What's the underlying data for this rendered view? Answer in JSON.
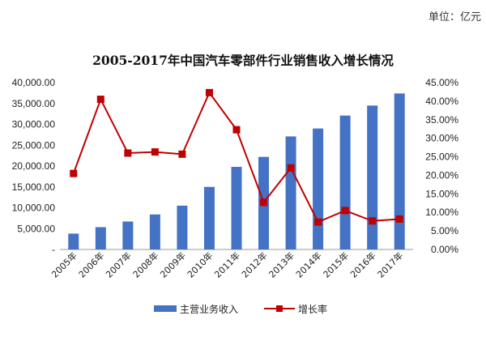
{
  "unit_label": "单位：亿元",
  "chart_data": {
    "type": "bar",
    "title": "2005-2017年中国汽车零部件行业销售收入增长情况",
    "categories": [
      "2005年",
      "2006年",
      "2007年",
      "2008年",
      "2009年",
      "2010年",
      "2011年",
      "2012年",
      "2013年",
      "2014年",
      "2015年",
      "2016年",
      "2017年"
    ],
    "series": [
      {
        "name": "主营业务收入",
        "type": "bar",
        "axis": "left",
        "color": "#4472C4",
        "values": [
          3800,
          5350,
          6700,
          8400,
          10500,
          15000,
          19800,
          22200,
          27100,
          29000,
          32100,
          34500,
          37400
        ]
      },
      {
        "name": "增长率",
        "type": "line",
        "axis": "right",
        "color": "#C00000",
        "values": [
          20.5,
          40.5,
          26.0,
          26.3,
          25.7,
          42.3,
          32.3,
          12.7,
          22.0,
          7.4,
          10.5,
          7.7,
          8.2
        ]
      }
    ],
    "y_left": {
      "min": 0,
      "max": 40000,
      "ticks": [
        0,
        5000,
        10000,
        15000,
        20000,
        25000,
        30000,
        35000,
        40000
      ],
      "tick_labels": [
        "-",
        "5,000.00",
        "10,000.00",
        "15,000.00",
        "20,000.00",
        "25,000.00",
        "30,000.00",
        "35,000.00",
        "40,000.00"
      ]
    },
    "y_right": {
      "min": 0,
      "max": 45,
      "ticks": [
        0,
        5,
        10,
        15,
        20,
        25,
        30,
        35,
        40,
        45
      ],
      "tick_labels": [
        "0.00%",
        "5.00%",
        "10.00%",
        "15.00%",
        "20.00%",
        "25.00%",
        "30.00%",
        "35.00%",
        "40.00%",
        "45.00%"
      ]
    },
    "grid": false,
    "legend_position": "bottom"
  }
}
